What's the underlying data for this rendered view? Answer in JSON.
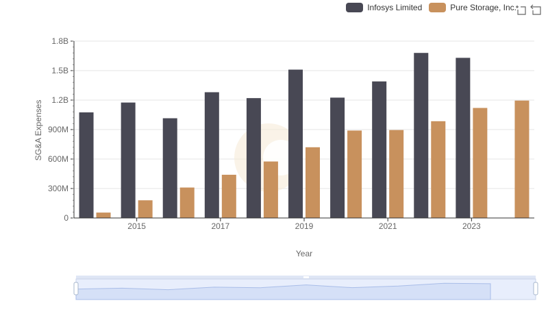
{
  "chart_data": {
    "type": "bar",
    "xlabel": "Year",
    "ylabel": "SG&A Expenses",
    "categories": [
      "2014",
      "2015",
      "2016",
      "2017",
      "2018",
      "2019",
      "2020",
      "2021",
      "2022",
      "2023",
      "2024"
    ],
    "x_tick_labels": [
      "2015",
      "2017",
      "2019",
      "2021",
      "2023"
    ],
    "y_tick_labels": [
      "0",
      "300M",
      "600M",
      "900M",
      "1.2B",
      "1.5B",
      "1.8B"
    ],
    "ylim": [
      0,
      1800000000
    ],
    "grid": true,
    "legend_position": "top-right",
    "series": [
      {
        "name": "Infosys Limited",
        "color": "#484854",
        "values": [
          1075000000,
          1175000000,
          1015000000,
          1280000000,
          1220000000,
          1510000000,
          1225000000,
          1390000000,
          1680000000,
          1630000000,
          null
        ]
      },
      {
        "name": "Pure Storage, Inc.",
        "color": "#c8915d",
        "values": [
          55000000,
          180000000,
          310000000,
          440000000,
          575000000,
          720000000,
          890000000,
          895000000,
          985000000,
          1120000000,
          1195000000
        ]
      }
    ]
  },
  "toolbox": {
    "zoom_icon": "zoom-select-icon",
    "restore_icon": "restore-icon"
  }
}
